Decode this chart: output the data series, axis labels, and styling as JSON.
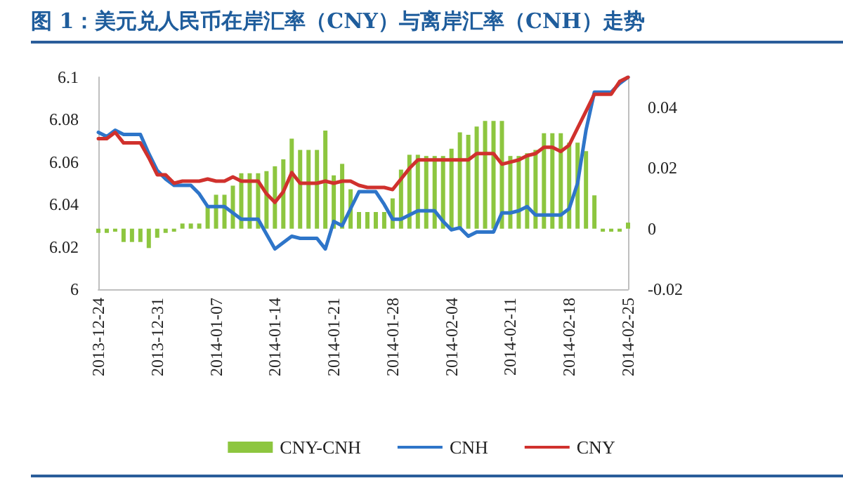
{
  "chart_data": {
    "type": "line",
    "title": "图 1：美元兑人民币在岸汇率（CNY）与离岸汇率（CNH）走势",
    "x": [
      "2013-12-24",
      "2013-12-25",
      "2013-12-26",
      "2013-12-27",
      "2013-12-28",
      "2013-12-29",
      "2013-12-30",
      "2013-12-31",
      "2014-01-01",
      "2014-01-02",
      "2014-01-03",
      "2014-01-04",
      "2014-01-05",
      "2014-01-06",
      "2014-01-07",
      "2014-01-08",
      "2014-01-09",
      "2014-01-10",
      "2014-01-11",
      "2014-01-12",
      "2014-01-13",
      "2014-01-14",
      "2014-01-15",
      "2014-01-16",
      "2014-01-17",
      "2014-01-18",
      "2014-01-19",
      "2014-01-20",
      "2014-01-21",
      "2014-01-22",
      "2014-01-23",
      "2014-01-24",
      "2014-01-25",
      "2014-01-26",
      "2014-01-27",
      "2014-01-28",
      "2014-01-29",
      "2014-01-30",
      "2014-01-31",
      "2014-02-01",
      "2014-02-02",
      "2014-02-03",
      "2014-02-04",
      "2014-02-05",
      "2014-02-06",
      "2014-02-07",
      "2014-02-08",
      "2014-02-09",
      "2014-02-10",
      "2014-02-11",
      "2014-02-12",
      "2014-02-13",
      "2014-02-14",
      "2014-02-15",
      "2014-02-16",
      "2014-02-17",
      "2014-02-18",
      "2014-02-19",
      "2014-02-20",
      "2014-02-21",
      "2014-02-22",
      "2014-02-23",
      "2014-02-24",
      "2014-02-25"
    ],
    "series": [
      {
        "name": "CNY-CNH",
        "type": "bar",
        "axis": "y2",
        "color": "#8dc63f",
        "values": [
          -0.0014,
          -0.0014,
          -0.001,
          -0.0044,
          -0.0044,
          -0.0044,
          -0.0064,
          -0.003,
          -0.0014,
          -0.001,
          0.0017,
          0.0017,
          0.0017,
          0.0073,
          0.0112,
          0.0112,
          0.0142,
          0.0183,
          0.0183,
          0.0183,
          0.019,
          0.0206,
          0.0229,
          0.0297,
          0.026,
          0.026,
          0.026,
          0.0324,
          0.0176,
          0.0214,
          0.013,
          0.0055,
          0.0055,
          0.0055,
          0.0055,
          0.01,
          0.0195,
          0.0244,
          0.0244,
          0.024,
          0.024,
          0.024,
          0.0264,
          0.0318,
          0.031,
          0.0337,
          0.0356,
          0.0356,
          0.0356,
          0.024,
          0.024,
          0.0249,
          0.026,
          0.0315,
          0.0315,
          0.0315,
          0.0284,
          0.0284,
          0.0256,
          0.011,
          -0.001,
          -0.001,
          -0.001,
          0.002
        ]
      },
      {
        "name": "CNH",
        "color": "#2e75c9",
        "values": [
          6.074,
          6.072,
          6.075,
          6.073,
          6.073,
          6.073,
          6.064,
          6.056,
          6.052,
          6.049,
          6.049,
          6.049,
          6.045,
          6.039,
          6.039,
          6.039,
          6.036,
          6.033,
          6.033,
          6.033,
          6.026,
          6.019,
          6.022,
          6.025,
          6.024,
          6.024,
          6.024,
          6.019,
          6.032,
          6.03,
          6.038,
          6.046,
          6.046,
          6.046,
          6.04,
          6.033,
          6.033,
          6.035,
          6.037,
          6.037,
          6.037,
          6.032,
          6.028,
          6.029,
          6.025,
          6.027,
          6.027,
          6.027,
          6.036,
          6.036,
          6.037,
          6.039,
          6.035,
          6.035,
          6.035,
          6.035,
          6.038,
          6.05,
          6.075,
          6.093,
          6.093,
          6.093,
          6.097,
          6.1
        ]
      },
      {
        "name": "CNY",
        "color": "#d0312d",
        "values": [
          6.071,
          6.071,
          6.074,
          6.069,
          6.069,
          6.069,
          6.062,
          6.054,
          6.054,
          6.05,
          6.051,
          6.051,
          6.051,
          6.052,
          6.051,
          6.051,
          6.053,
          6.051,
          6.051,
          6.051,
          6.045,
          6.041,
          6.046,
          6.055,
          6.05,
          6.05,
          6.05,
          6.051,
          6.05,
          6.051,
          6.051,
          6.049,
          6.048,
          6.048,
          6.048,
          6.047,
          6.052,
          6.057,
          6.061,
          6.061,
          6.061,
          6.061,
          6.061,
          6.061,
          6.061,
          6.064,
          6.064,
          6.064,
          6.059,
          6.06,
          6.061,
          6.063,
          6.064,
          6.067,
          6.067,
          6.065,
          6.068,
          6.076,
          6.084,
          6.092,
          6.092,
          6.092,
          6.098,
          6.1
        ]
      }
    ],
    "xlim": [
      "2013-12-24",
      "2014-02-25"
    ],
    "xticks": [
      "2013-12-24",
      "2013-12-31",
      "2014-01-07",
      "2014-01-14",
      "2014-01-21",
      "2014-01-28",
      "2014-02-04",
      "2014-02-11",
      "2014-02-18",
      "2014-02-25"
    ],
    "ylim": [
      6,
      6.1
    ],
    "yticks": [
      6,
      6.02,
      6.04,
      6.06,
      6.08,
      6.1
    ],
    "y2lim": [
      -0.02,
      0.05
    ],
    "y2ticks": [
      -0.02,
      0,
      0.02,
      0.04
    ],
    "grid": false,
    "legend": "bottom",
    "marker": "none",
    "line_style": "solid"
  }
}
